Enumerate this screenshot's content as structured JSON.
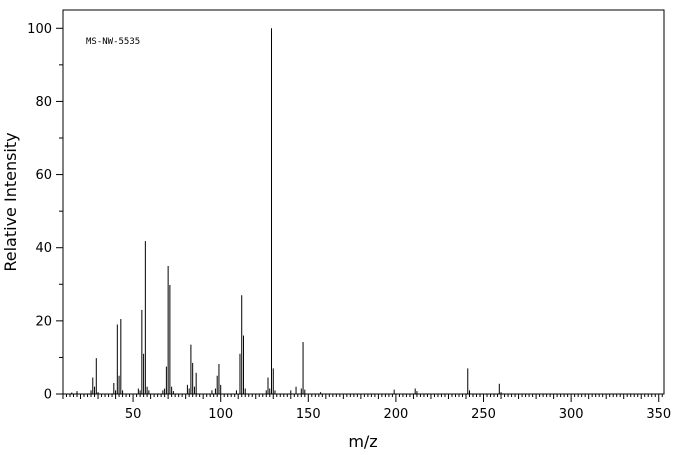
{
  "chart_data": {
    "type": "bar",
    "annotation": "MS-NW-5535",
    "xlabel": "m/z",
    "ylabel": "Relative Intensity",
    "xlim": [
      10,
      353
    ],
    "ylim": [
      0,
      105
    ],
    "x_ticks": [
      50,
      100,
      150,
      200,
      250,
      300,
      350
    ],
    "y_ticks": [
      0,
      20,
      40,
      60,
      80,
      100
    ],
    "x_minor_step": 2,
    "y_minor_step": 10,
    "grid": false,
    "peaks": [
      [
        15,
        0.4
      ],
      [
        18,
        0.8
      ],
      [
        26,
        1.0
      ],
      [
        27,
        4.5
      ],
      [
        28,
        2.0
      ],
      [
        29,
        9.8
      ],
      [
        30,
        0.5
      ],
      [
        39,
        3.0
      ],
      [
        40,
        1.0
      ],
      [
        41,
        19.0
      ],
      [
        42,
        5.0
      ],
      [
        43,
        20.5
      ],
      [
        44,
        1.0
      ],
      [
        53,
        1.5
      ],
      [
        54,
        1.0
      ],
      [
        55,
        23.0
      ],
      [
        56,
        11.0
      ],
      [
        57,
        41.8
      ],
      [
        58,
        2.0
      ],
      [
        59,
        1.0
      ],
      [
        67,
        1.0
      ],
      [
        68,
        1.5
      ],
      [
        69,
        7.5
      ],
      [
        70,
        35.0
      ],
      [
        71,
        29.8
      ],
      [
        72,
        2.0
      ],
      [
        73,
        0.8
      ],
      [
        81,
        2.5
      ],
      [
        82,
        1.5
      ],
      [
        83,
        13.5
      ],
      [
        84,
        8.5
      ],
      [
        85,
        2.0
      ],
      [
        86,
        5.8
      ],
      [
        95,
        1.0
      ],
      [
        97,
        1.5
      ],
      [
        98,
        5.0
      ],
      [
        99,
        8.2
      ],
      [
        100,
        2.5
      ],
      [
        109,
        1.0
      ],
      [
        111,
        11.0
      ],
      [
        112,
        27.0
      ],
      [
        113,
        16.0
      ],
      [
        114,
        1.5
      ],
      [
        126,
        1.0
      ],
      [
        127,
        4.5
      ],
      [
        128,
        1.5
      ],
      [
        129,
        100.0
      ],
      [
        130,
        7.0
      ],
      [
        131,
        1.0
      ],
      [
        140,
        1.0
      ],
      [
        143,
        2.0
      ],
      [
        146,
        1.5
      ],
      [
        147,
        14.2
      ],
      [
        148,
        1.2
      ],
      [
        157,
        0.5
      ],
      [
        199,
        1.2
      ],
      [
        211,
        1.5
      ],
      [
        212,
        0.8
      ],
      [
        241,
        7.0
      ],
      [
        242,
        1.0
      ],
      [
        259,
        2.8
      ],
      [
        260,
        0.5
      ]
    ]
  }
}
